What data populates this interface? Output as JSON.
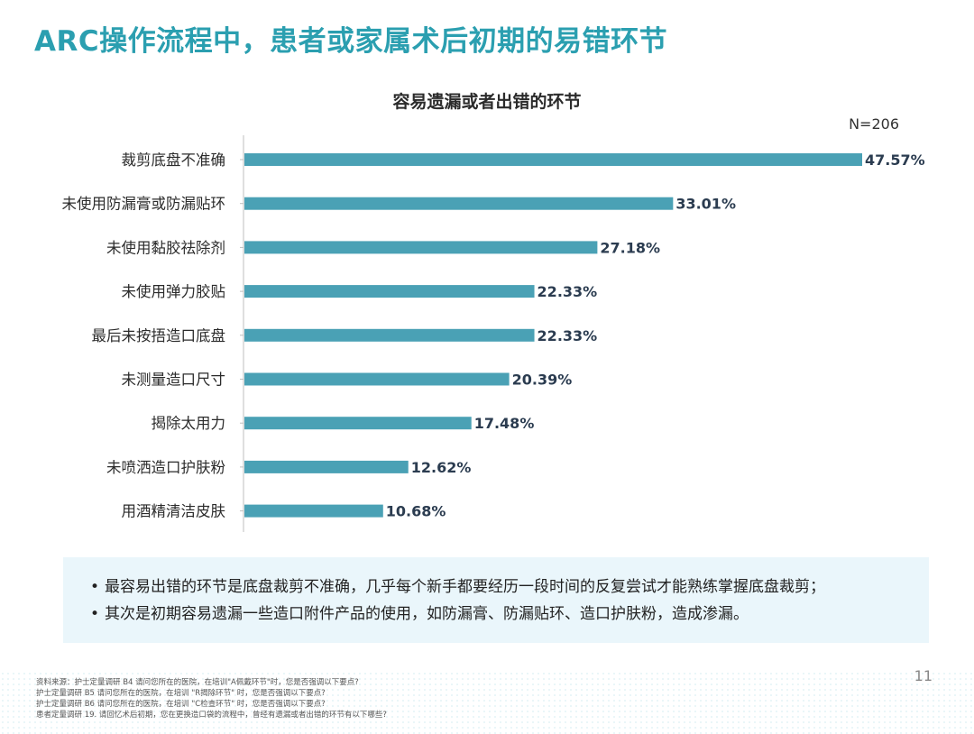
{
  "title": "ARC操作流程中，患者或家属术后初期的易错环节",
  "chart_data": {
    "type": "bar",
    "orientation": "horizontal",
    "title": "容易遗漏或者出错的环节",
    "sample_size": "N=206",
    "categories": [
      "裁剪底盘不准确",
      "未使用防漏膏或防漏贴环",
      "未使用黏胶祛除剂",
      "未使用弹力胶贴",
      "最后未按捂造口底盘",
      "未测量造口尺寸",
      "揭除太用力",
      "未喷洒造口护肤粉",
      "用酒精清洁皮肤"
    ],
    "values": [
      47.57,
      33.01,
      27.18,
      22.33,
      22.33,
      20.39,
      17.48,
      12.62,
      10.68
    ],
    "value_labels": [
      "47.57%",
      "33.01%",
      "27.18%",
      "22.33%",
      "22.33%",
      "20.39%",
      "17.48%",
      "12.62%",
      "10.68%"
    ],
    "xlim": [
      0,
      47.57
    ],
    "bar_color": "#4aa1b5",
    "grid": false
  },
  "notes": [
    "最容易出错的环节是底盘裁剪不准确，几乎每个新手都要经历一段时间的反复尝试才能熟练掌握底盘裁剪；",
    "其次是初期容易遗漏一些造口附件产品的使用，如防漏膏、防漏贴环、造口护肤粉，造成渗漏。"
  ],
  "bullet": "•",
  "footnotes": [
    "资料来源：护士定量调研  B4 请问您所在的医院，在培训\"A佩戴环节\"时，您是否强调以下要点?",
    "护士定量调研 B5 请问您所在的医院，在培训 \"R揭除环节\" 时，您是否强调以下要点?",
    "护士定量调研 B6 请问您所在的医院，在培训 \"C检查环节\" 时，您是否强调以下要点?",
    "患者定量调研  19. 请回忆术后初期，您在更换造口袋的流程中，曾经有遗漏或者出错的环节有以下哪些?"
  ],
  "page_number": "11",
  "colors": {
    "accent": "#2b9fb0",
    "bar": "#4aa1b5",
    "note_bg": "#eaf6fb"
  }
}
